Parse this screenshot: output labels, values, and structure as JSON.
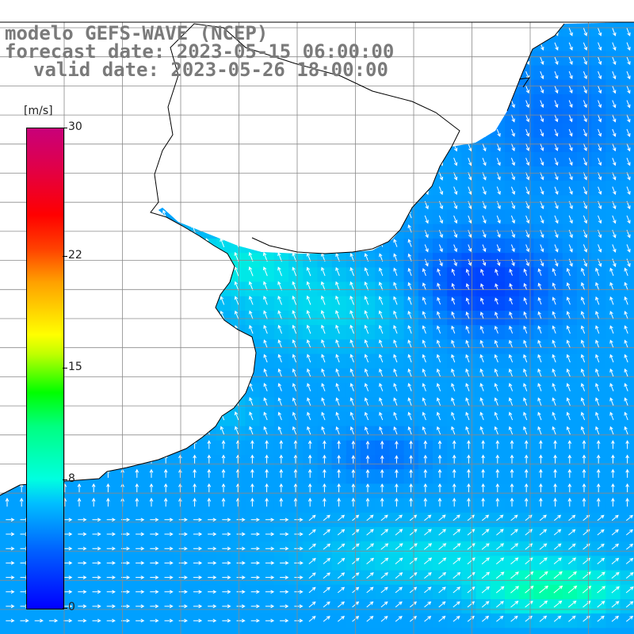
{
  "title": {
    "model": "modelo GEFS-WAVE (NCEP)",
    "forecast": "forecast date: 2023-05-15 06:00:00",
    "valid": "valid date: 2023-05-26 18:00:00"
  },
  "legend": {
    "unit": "[m/s]",
    "min": 0,
    "max": 30,
    "ticks": [
      {
        "value": 30,
        "label": "30"
      },
      {
        "value": 22,
        "label": "22"
      },
      {
        "value": 15,
        "label": "15"
      },
      {
        "value": 8,
        "label": "8"
      },
      {
        "value": 0,
        "label": "0"
      }
    ]
  },
  "colors": {
    "land": "#ffffff",
    "grid": "#8a8a8a",
    "coast": "#000000",
    "arrow": "#ffffff"
  },
  "map": {
    "type": "wind field",
    "grid_lines": true
  }
}
